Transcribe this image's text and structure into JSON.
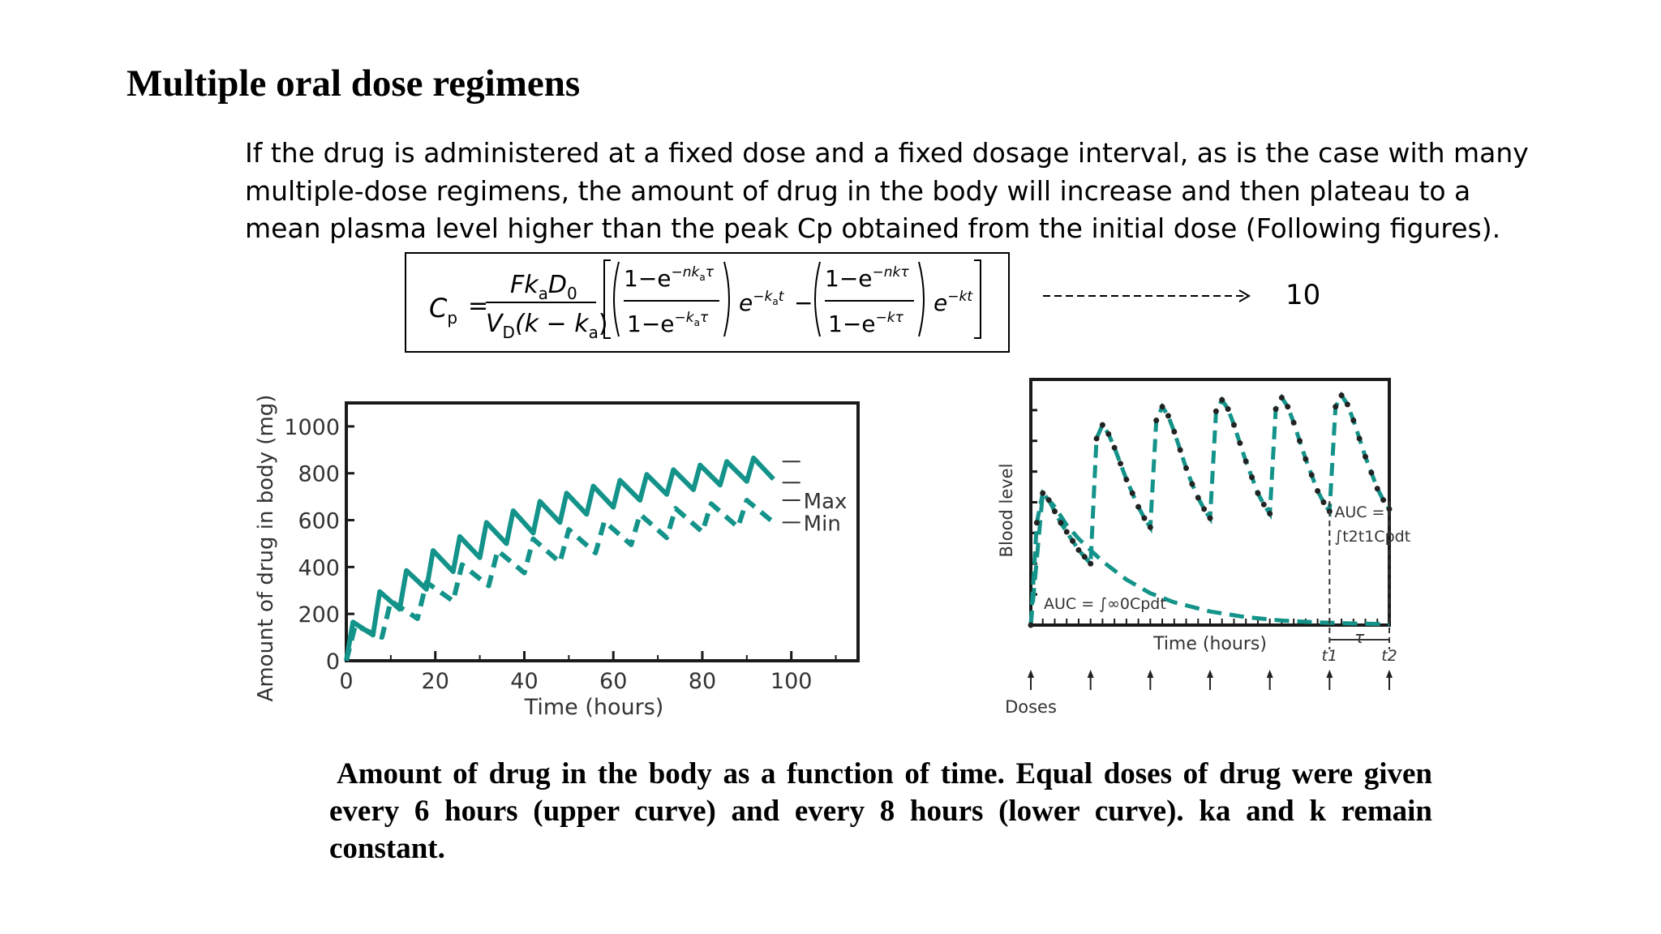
{
  "slide": {
    "title": "Multiple oral dose regimens",
    "intro_lines": [
      "If the drug is administered at a fixed dose and a fixed dosage interval, as is the case with many",
      "multiple-dose regimens, the amount of drug in the body will increase and then plateau to a",
      "mean plasma level higher than the peak Cp obtained from the initial dose (Following figures)."
    ],
    "equation_number": "10",
    "caption_lines": [
      "Amount of drug in the body as a function of time. Equal doses of drug were given",
      "every 6 hours (upper curve) and every 8 hours (lower curve). ka and k remain",
      "constant."
    ]
  },
  "formula": {
    "lhs": "C",
    "lhs_sub": "p",
    "numerator": "Fk",
    "numerator_sub_a": "a",
    "numerator_D": "D",
    "numerator_sub_0": "0",
    "denominator": "V",
    "denominator_sub": "D",
    "denominator_rest": "(k − k",
    "denominator_rest_sub": "a",
    "paren_close": ")",
    "frac1_num": "1−e",
    "frac1_num_sup": "−nk",
    "frac1_num_sup_sub": "a",
    "frac1_num_sup_tail": "τ",
    "frac1_den": "1−e",
    "frac1_den_sup": "−k",
    "frac1_den_sup_sub": "a",
    "frac1_den_sup_tail": "τ",
    "mid_exp": "e",
    "mid_exp_sup": "−k",
    "mid_exp_sup_sub": "a",
    "mid_exp_sup_tail": "t",
    "minus": "−",
    "frac2_num": "1−e",
    "frac2_num_sup": "−nkτ",
    "frac2_den": "1−e",
    "frac2_den_sup": "−kτ",
    "end_exp": "e",
    "end_exp_sup": "−kt",
    "equals": "="
  },
  "chart_data": [
    {
      "type": "line",
      "xlabel": "Time (hours)",
      "ylabel": "Amount of drug in body (mg)",
      "xlim": [
        0,
        115
      ],
      "ylim": [
        0,
        1100
      ],
      "x_ticks": [
        0,
        20,
        40,
        60,
        80,
        100
      ],
      "y_ticks": [
        0,
        200,
        400,
        600,
        800,
        1000
      ],
      "annotations": [
        "Max",
        "Min"
      ],
      "grid": false,
      "color": "#139389",
      "series": [
        {
          "name": "",
          "dose_interval_h": 6,
          "style": "solid",
          "x": [
            0,
            1.5,
            6,
            7.5,
            12,
            13.5,
            18,
            19.5,
            24,
            25.5,
            30,
            31.5,
            36,
            37.5,
            42,
            43.5,
            48,
            49.5,
            54,
            55.5,
            60,
            61.5,
            66,
            67.5,
            72,
            73.5,
            78,
            79.5,
            84,
            85.5,
            90,
            91.5,
            96
          ],
          "values": [
            0,
            165,
            110,
            295,
            220,
            385,
            305,
            470,
            380,
            530,
            440,
            590,
            500,
            640,
            545,
            680,
            590,
            715,
            625,
            745,
            655,
            770,
            685,
            795,
            710,
            815,
            730,
            835,
            750,
            850,
            765,
            865,
            775
          ]
        },
        {
          "name": "",
          "dose_interval_h": 8,
          "style": "dashed",
          "x": [
            0,
            2,
            8,
            10,
            16,
            18,
            24,
            26,
            32,
            34,
            40,
            42,
            48,
            50,
            56,
            58,
            64,
            66,
            72,
            74,
            80,
            82,
            88,
            90,
            96
          ],
          "values": [
            0,
            150,
            100,
            255,
            180,
            335,
            255,
            410,
            320,
            470,
            375,
            520,
            420,
            560,
            460,
            595,
            495,
            625,
            525,
            650,
            550,
            670,
            570,
            685,
            590
          ]
        }
      ]
    },
    {
      "type": "line",
      "xlabel": "Time (hours)",
      "ylabel": "Blood level",
      "dose_marker_label": "Doses",
      "doses_count": 7,
      "annotations": [
        "AUC =",
        "∫",
        "∞",
        "0",
        "C",
        "p",
        "dt",
        "AUC =",
        "∫",
        "t",
        "2",
        "t",
        "1",
        "C",
        "p",
        "dt",
        "τ",
        "t",
        "1",
        "t",
        "2"
      ],
      "grid": false,
      "color": "#139389",
      "series": [
        {
          "name": "",
          "style": "dashed-with-dots",
          "x": [
            0,
            0.5,
            1,
            1.5,
            2,
            2.5,
            3,
            3.5,
            4,
            4.5,
            5,
            5.5,
            6,
            6.5,
            7,
            7.5,
            8,
            8.5,
            9,
            9.5,
            10,
            10.5,
            11,
            11.5,
            12,
            12.5,
            13,
            13.5,
            14,
            14.5,
            15,
            15.5,
            16,
            16.5,
            17,
            17.5,
            18,
            18.5,
            19,
            19.5,
            20,
            20.5,
            21,
            21.5,
            22,
            22.5,
            23,
            23.5,
            24,
            24.5,
            25,
            25.5,
            26,
            26.5,
            27,
            27.5,
            28,
            28.5,
            29,
            29.5,
            30
          ],
          "values": [
            0,
            0.45,
            0.58,
            0.55,
            0.5,
            0.45,
            0.41,
            0.37,
            0.33,
            0.3,
            0.27,
            0.82,
            0.88,
            0.84,
            0.78,
            0.71,
            0.64,
            0.58,
            0.52,
            0.47,
            0.43,
            0.9,
            0.96,
            0.92,
            0.85,
            0.77,
            0.69,
            0.62,
            0.56,
            0.51,
            0.47,
            0.94,
            0.99,
            0.95,
            0.88,
            0.8,
            0.72,
            0.65,
            0.58,
            0.53,
            0.49,
            0.95,
            1.0,
            0.96,
            0.89,
            0.81,
            0.73,
            0.66,
            0.59,
            0.54,
            0.5,
            0.96,
            1.01,
            0.97,
            0.9,
            0.82,
            0.74,
            0.67,
            0.6,
            0.55,
            0.51
          ]
        },
        {
          "name": "",
          "style": "dashed",
          "x": [
            0,
            1,
            2,
            3,
            4,
            6,
            8,
            10,
            12,
            15,
            18,
            21,
            24,
            27,
            30
          ],
          "values": [
            0,
            0.58,
            0.52,
            0.44,
            0.38,
            0.28,
            0.2,
            0.14,
            0.1,
            0.06,
            0.035,
            0.02,
            0.012,
            0.007,
            0.004
          ]
        }
      ]
    }
  ]
}
